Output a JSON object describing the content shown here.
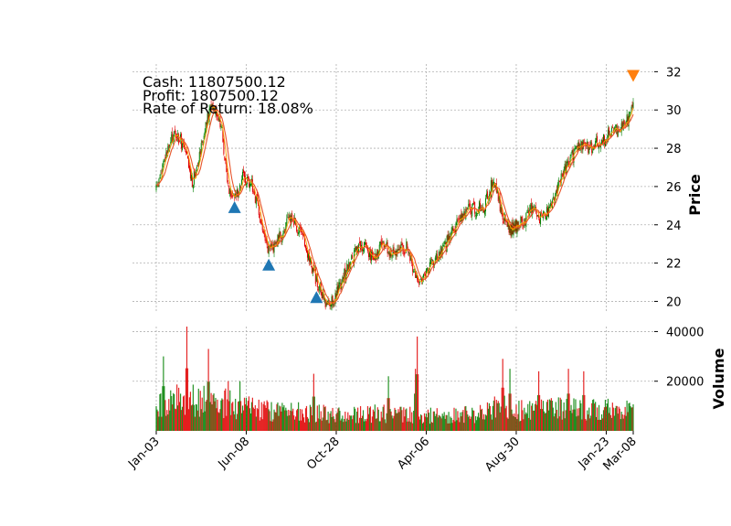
{
  "info": {
    "cash": "Cash: 11807500.12",
    "profit": "Profit: 1807500.12",
    "rate": "Rate of Return: 18.08%"
  },
  "chart_data": {
    "type": "candlestick",
    "panels": [
      {
        "name": "price",
        "ylabel": "Price",
        "ylim": [
          19.4,
          32.4
        ],
        "yticks": [
          20,
          22,
          24,
          26,
          28,
          30,
          32
        ]
      },
      {
        "name": "volume",
        "ylabel": "Volume",
        "ylim": [
          0,
          42000
        ],
        "yticks": [
          20000,
          40000
        ],
        "ytick_labels": [
          "20000",
          "40000"
        ]
      }
    ],
    "xlim": [
      0,
      530
    ],
    "xticks": [
      {
        "index": 0,
        "label": "Jan-03"
      },
      {
        "index": 100,
        "label": "Jun-08"
      },
      {
        "index": 200,
        "label": "Oct-28"
      },
      {
        "index": 300,
        "label": "Apr-06"
      },
      {
        "index": 400,
        "label": "Aug-30"
      },
      {
        "index": 500,
        "label": "Jan-23"
      },
      {
        "index": 530,
        "label": "Mar-08"
      }
    ],
    "price_path": [
      [
        0,
        25.8
      ],
      [
        10,
        27.5
      ],
      [
        20,
        28.8
      ],
      [
        30,
        28.2
      ],
      [
        40,
        26.2
      ],
      [
        50,
        28.2
      ],
      [
        62,
        30.4
      ],
      [
        68,
        29.8
      ],
      [
        72,
        29.2
      ],
      [
        80,
        26.0
      ],
      [
        88,
        25.4
      ],
      [
        96,
        26.5
      ],
      [
        106,
        26.2
      ],
      [
        116,
        24.2
      ],
      [
        124,
        22.6
      ],
      [
        140,
        23.5
      ],
      [
        150,
        24.5
      ],
      [
        165,
        23.0
      ],
      [
        175,
        21.5
      ],
      [
        188,
        19.8
      ],
      [
        198,
        20.2
      ],
      [
        210,
        21.5
      ],
      [
        222,
        22.6
      ],
      [
        232,
        22.9
      ],
      [
        242,
        22.2
      ],
      [
        250,
        23.0
      ],
      [
        262,
        22.6
      ],
      [
        278,
        22.8
      ],
      [
        290,
        21.1
      ],
      [
        300,
        21.5
      ],
      [
        320,
        22.8
      ],
      [
        330,
        23.8
      ],
      [
        345,
        24.8
      ],
      [
        355,
        24.8
      ],
      [
        365,
        25.0
      ],
      [
        375,
        26.4
      ],
      [
        383,
        24.8
      ],
      [
        392,
        23.7
      ],
      [
        402,
        24.0
      ],
      [
        410,
        24.3
      ],
      [
        420,
        25.1
      ],
      [
        425,
        24.3
      ],
      [
        440,
        25.0
      ],
      [
        450,
        26.5
      ],
      [
        458,
        27.3
      ],
      [
        470,
        28.1
      ],
      [
        485,
        28.1
      ],
      [
        500,
        28.6
      ],
      [
        520,
        29.3
      ],
      [
        525,
        29.5
      ],
      [
        530,
        30.2
      ]
    ],
    "volume_profile": [
      [
        0,
        9000
      ],
      [
        20,
        13000
      ],
      [
        50,
        12000
      ],
      [
        80,
        11000
      ],
      [
        120,
        8000
      ],
      [
        170,
        7500
      ],
      [
        200,
        6500
      ],
      [
        260,
        7000
      ],
      [
        300,
        6000
      ],
      [
        360,
        7000
      ],
      [
        380,
        10000
      ],
      [
        400,
        8000
      ],
      [
        460,
        9000
      ],
      [
        530,
        8000
      ]
    ],
    "volume_spikes": [
      [
        8,
        30000
      ],
      [
        34,
        42000
      ],
      [
        58,
        33000
      ],
      [
        80,
        20000
      ],
      [
        93,
        20000
      ],
      [
        175,
        23000
      ],
      [
        258,
        22000
      ],
      [
        290,
        38000
      ],
      [
        288,
        25000
      ],
      [
        385,
        29000
      ],
      [
        393,
        25000
      ],
      [
        425,
        24000
      ],
      [
        458,
        25000
      ],
      [
        475,
        24000
      ]
    ],
    "colors": {
      "up": "#008000",
      "down": "#e00000",
      "ma_long": "#e8542a",
      "ma_short": "#ffa000",
      "buy_marker": "#1f77b4",
      "sell_marker": "#ff7f0e"
    },
    "buy_signals": [
      {
        "index": 87,
        "price": 24.9
      },
      {
        "index": 125,
        "price": 21.9
      },
      {
        "index": 178,
        "price": 20.2
      }
    ],
    "sell_signals": [
      {
        "index": 530,
        "price": 31.8
      }
    ],
    "grid": true
  }
}
